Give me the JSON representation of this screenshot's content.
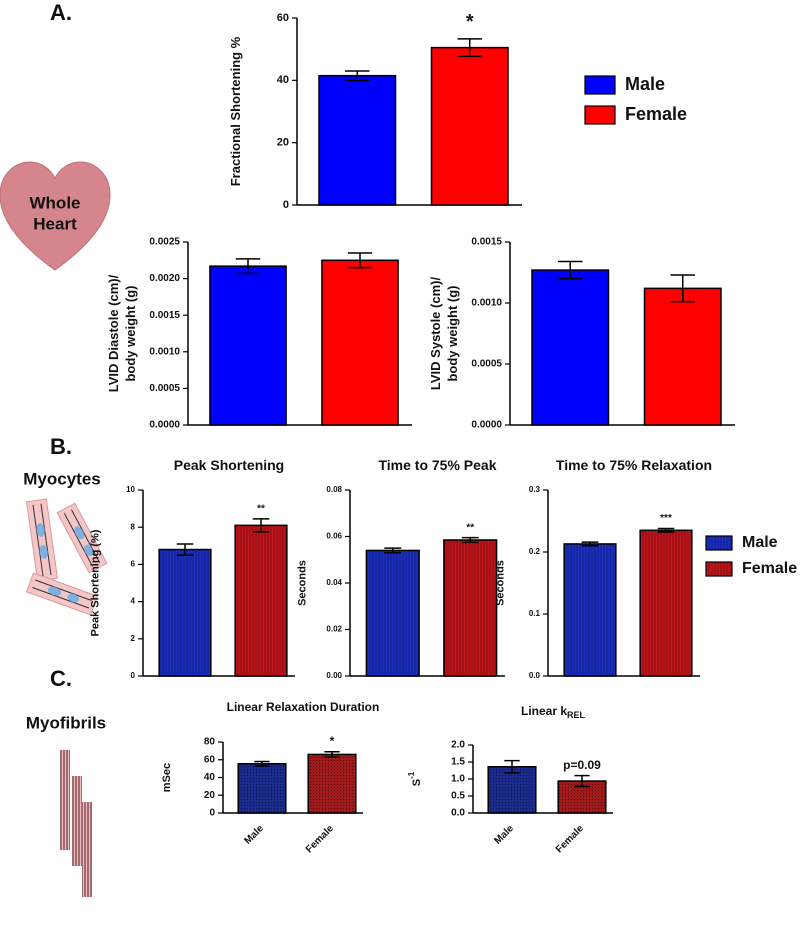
{
  "panels": [
    {
      "label": "A.",
      "name": [
        "Whole",
        "Heart"
      ]
    },
    {
      "label": "B.",
      "name": [
        "Myocytes"
      ]
    },
    {
      "label": "C.",
      "name": [
        "Myofibrils"
      ]
    }
  ],
  "chart_data": [
    {
      "type": "bar",
      "ylabel": [
        "Fractional Shortening %"
      ],
      "categories": [
        null,
        null
      ],
      "legend": "right",
      "series": [
        {
          "name": "Male",
          "color": "#0000ff",
          "values": [
            41.5,
            null
          ],
          "errors": [
            1.5,
            null
          ]
        },
        {
          "name": "Female",
          "color": "#ff0000",
          "values": [
            null,
            50.5
          ],
          "errors": [
            null,
            2.8
          ]
        }
      ],
      "significance": [
        null,
        "*"
      ],
      "ylim": [
        0,
        60
      ],
      "yticks": [
        0,
        20,
        40,
        60
      ]
    },
    {
      "type": "bar",
      "ylabel": [
        "LVID Diastole (cm)/",
        "body weight (g)"
      ],
      "categories": [
        null,
        null
      ],
      "series": [
        {
          "name": "Male",
          "color": "#0000ff",
          "values": [
            0.00217,
            null
          ],
          "errors": [
            0.0001,
            null
          ]
        },
        {
          "name": "Female",
          "color": "#ff0000",
          "values": [
            null,
            0.00225
          ],
          "errors": [
            null,
            0.0001
          ]
        }
      ],
      "ylim": [
        0,
        0.0025
      ],
      "yticks": [
        {
          "value": 0,
          "label": "0.0000"
        },
        {
          "value": 0.0005,
          "label": "0.0005"
        },
        {
          "value": 0.001,
          "label": "0.0010"
        },
        {
          "value": 0.0015,
          "label": "0.0015"
        },
        {
          "value": 0.002,
          "label": "0.0020"
        },
        {
          "value": 0.0025,
          "label": "0.0025"
        }
      ]
    },
    {
      "type": "bar",
      "ylabel": [
        "LVID Systole (cm)/",
        "body weight (g)"
      ],
      "categories": [
        null,
        null
      ],
      "series": [
        {
          "name": "Male",
          "color": "#0000ff",
          "values": [
            0.00127,
            null
          ],
          "errors": [
            7e-05,
            null
          ]
        },
        {
          "name": "Female",
          "color": "#ff0000",
          "values": [
            null,
            0.00112
          ],
          "errors": [
            null,
            0.00011
          ]
        }
      ],
      "ylim": [
        0,
        0.0015
      ],
      "yticks": [
        {
          "value": 0,
          "label": "0.0000"
        },
        {
          "value": 0.0005,
          "label": "0.0005"
        },
        {
          "value": 0.001,
          "label": "0.0010"
        },
        {
          "value": 0.0015,
          "label": "0.0015"
        }
      ]
    },
    {
      "type": "bar",
      "title": "Peak Shortening",
      "ylabel": [
        "Peak Shortening (%)"
      ],
      "categories": [
        null,
        null
      ],
      "legend": "right",
      "pattern": "stripes",
      "series": [
        {
          "name": "Male",
          "color": "#1a2fbf",
          "values": [
            6.8,
            null
          ],
          "errors": [
            0.3,
            null
          ]
        },
        {
          "name": "Female",
          "color": "#c0141b",
          "values": [
            null,
            8.1
          ],
          "errors": [
            null,
            0.35
          ]
        }
      ],
      "significance": [
        null,
        "**"
      ],
      "ylim": [
        0,
        10
      ],
      "yticks": [
        0,
        2,
        4,
        6,
        8,
        10
      ]
    },
    {
      "type": "bar",
      "title": "Time to  75% Peak",
      "ylabel": [
        "Seconds"
      ],
      "categories": [
        null,
        null
      ],
      "pattern": "stripes",
      "series": [
        {
          "name": "Male",
          "color": "#1a2fbf",
          "values": [
            0.054,
            null
          ],
          "errors": [
            0.001,
            null
          ]
        },
        {
          "name": "Female",
          "color": "#c0141b",
          "values": [
            null,
            0.0585
          ],
          "errors": [
            null,
            0.001
          ]
        }
      ],
      "significance": [
        null,
        "**"
      ],
      "ylim": [
        0,
        0.08
      ],
      "yticks": [
        {
          "value": 0,
          "label": "0.00"
        },
        0.02,
        0.04,
        0.06,
        0.08
      ]
    },
    {
      "type": "bar",
      "title": "Time to 75% Relaxation",
      "ylabel": [
        "Seconds"
      ],
      "categories": [
        null,
        null
      ],
      "pattern": "stripes",
      "series": [
        {
          "name": "Male",
          "color": "#1a2fbf",
          "values": [
            0.213,
            null
          ],
          "errors": [
            0.003,
            null
          ]
        },
        {
          "name": "Female",
          "color": "#c0141b",
          "values": [
            null,
            0.235
          ],
          "errors": [
            null,
            0.003
          ]
        }
      ],
      "significance": [
        null,
        "***"
      ],
      "ylim": [
        0,
        0.3
      ],
      "yticks": [
        {
          "value": 0,
          "label": "0.0"
        },
        0.1,
        0.2,
        0.3
      ]
    },
    {
      "type": "bar",
      "title": "Linear Relaxation Duration",
      "ylabel": [
        "mSec"
      ],
      "categories": [
        "Male",
        "Female"
      ],
      "pattern": "dots",
      "values": [
        55.5,
        66
      ],
      "errors": [
        2.5,
        3
      ],
      "colors": [
        "#1b2a8c",
        "#a01a1a"
      ],
      "significance": [
        null,
        "*"
      ],
      "ylim": [
        0,
        80
      ],
      "yticks": [
        0,
        20,
        40,
        60,
        80
      ]
    },
    {
      "type": "bar",
      "title": "Linear k",
      "title_sub": "REL",
      "ylabel": [
        "S"
      ],
      "ylabel_sup": "-1",
      "categories": [
        "Male",
        "Female"
      ],
      "pattern": "dots",
      "values": [
        1.36,
        0.94
      ],
      "errors": [
        0.18,
        0.16
      ],
      "colors": [
        "#1b2a8c",
        "#a01a1a"
      ],
      "significance": [
        null,
        "p=0.09"
      ],
      "ylim": [
        0,
        2
      ],
      "yticks": [
        {
          "value": 0,
          "label": "0.0"
        },
        0.5,
        {
          "value": 1,
          "label": "1.0"
        },
        1.5,
        {
          "value": 2,
          "label": "2.0"
        }
      ]
    }
  ]
}
